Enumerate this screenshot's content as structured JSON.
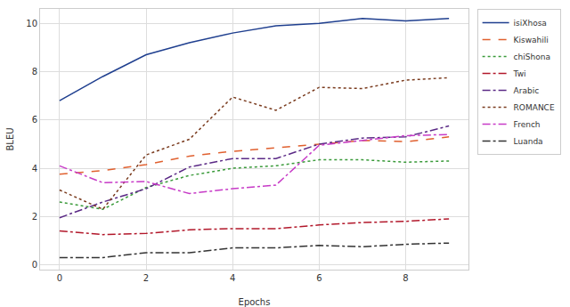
{
  "chart_data": {
    "type": "line",
    "x_label": "Epochs",
    "y_label": "BLEU",
    "x": [
      0,
      1,
      2,
      3,
      4,
      5,
      6,
      7,
      8,
      9
    ],
    "xlim": [
      -0.45,
      9.45
    ],
    "xticks": [
      0,
      2,
      4,
      6,
      8
    ],
    "ylim": [
      -0.2,
      10.6
    ],
    "yticks": [
      0,
      2,
      4,
      6,
      8,
      10
    ],
    "grid": true,
    "legend": "right",
    "series": [
      {
        "name": "isiXhosa",
        "color": "#1f3f8f",
        "line_style": "solid",
        "values": [
          6.8,
          7.8,
          8.7,
          9.2,
          9.6,
          9.9,
          10.0,
          10.2,
          10.1,
          10.2
        ]
      },
      {
        "name": "Kiswahili",
        "color": "#e0602f",
        "line_style": "dash",
        "values": [
          3.75,
          3.9,
          4.15,
          4.5,
          4.7,
          4.85,
          5.0,
          5.15,
          5.1,
          5.3
        ]
      },
      {
        "name": "chiShona",
        "color": "#3a9a3a",
        "line_style": "dot",
        "values": [
          2.6,
          2.3,
          3.2,
          3.7,
          4.0,
          4.1,
          4.35,
          4.35,
          4.25,
          4.3
        ]
      },
      {
        "name": "Twi",
        "color": "#b2182b",
        "line_style": "dashdot",
        "values": [
          1.4,
          1.25,
          1.3,
          1.45,
          1.5,
          1.5,
          1.65,
          1.75,
          1.8,
          1.9
        ]
      },
      {
        "name": "Arabic",
        "color": "#5b2a86",
        "line_style": "dashdot",
        "values": [
          1.95,
          2.6,
          3.15,
          4.05,
          4.4,
          4.4,
          5.0,
          5.25,
          5.3,
          5.75
        ]
      },
      {
        "name": "ROMANCE",
        "color": "#7a3b1e",
        "line_style": "dot",
        "values": [
          3.1,
          2.3,
          4.55,
          5.2,
          6.95,
          6.4,
          7.35,
          7.3,
          7.65,
          7.75
        ]
      },
      {
        "name": "French",
        "color": "#c73bc7",
        "line_style": "dashdot",
        "values": [
          4.1,
          3.4,
          3.45,
          2.95,
          3.15,
          3.3,
          4.95,
          5.15,
          5.35,
          5.4
        ]
      },
      {
        "name": "Luanda",
        "color": "#333333",
        "line_style": "dashdot",
        "values": [
          0.3,
          0.3,
          0.5,
          0.5,
          0.7,
          0.7,
          0.8,
          0.75,
          0.85,
          0.9
        ]
      }
    ]
  }
}
